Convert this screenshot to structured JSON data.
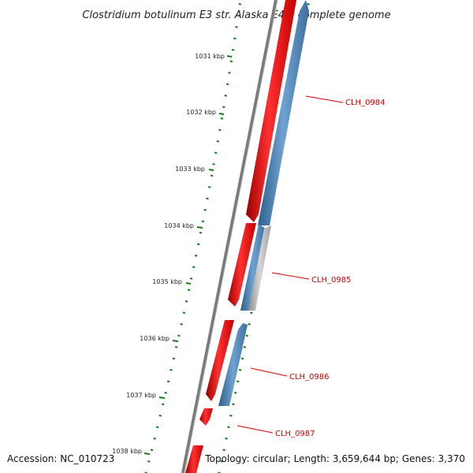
{
  "title": "Clostridium botulinum E3 str. Alaska E43, complete genome",
  "footer": {
    "accession": "Accession: NC_010723",
    "info": "Topology: circular; Length: 3,659,644 bp; Genes: 3,370"
  },
  "ticks": [
    {
      "label": "1031 kbp"
    },
    {
      "label": "1032 kbp"
    },
    {
      "label": "1033 kbp"
    },
    {
      "label": "1034 kbp"
    },
    {
      "label": "1035 kbp"
    },
    {
      "label": "1036 kbp"
    },
    {
      "label": "1037 kbp"
    },
    {
      "label": "1038 kbp"
    }
  ],
  "genes": [
    {
      "label": "CLH_0984"
    },
    {
      "label": "CLH_0985"
    },
    {
      "label": "CLH_0986"
    },
    {
      "label": "CLH_0987"
    }
  ],
  "colors": {
    "forward_gene": "#ee1111",
    "reverse_gene": "#4f86b8",
    "rna_gene": "#b5b5b5",
    "backbone": "#7a7a7a",
    "tick_marks": "#1a7a1a",
    "gene_label": "#cc0000"
  }
}
